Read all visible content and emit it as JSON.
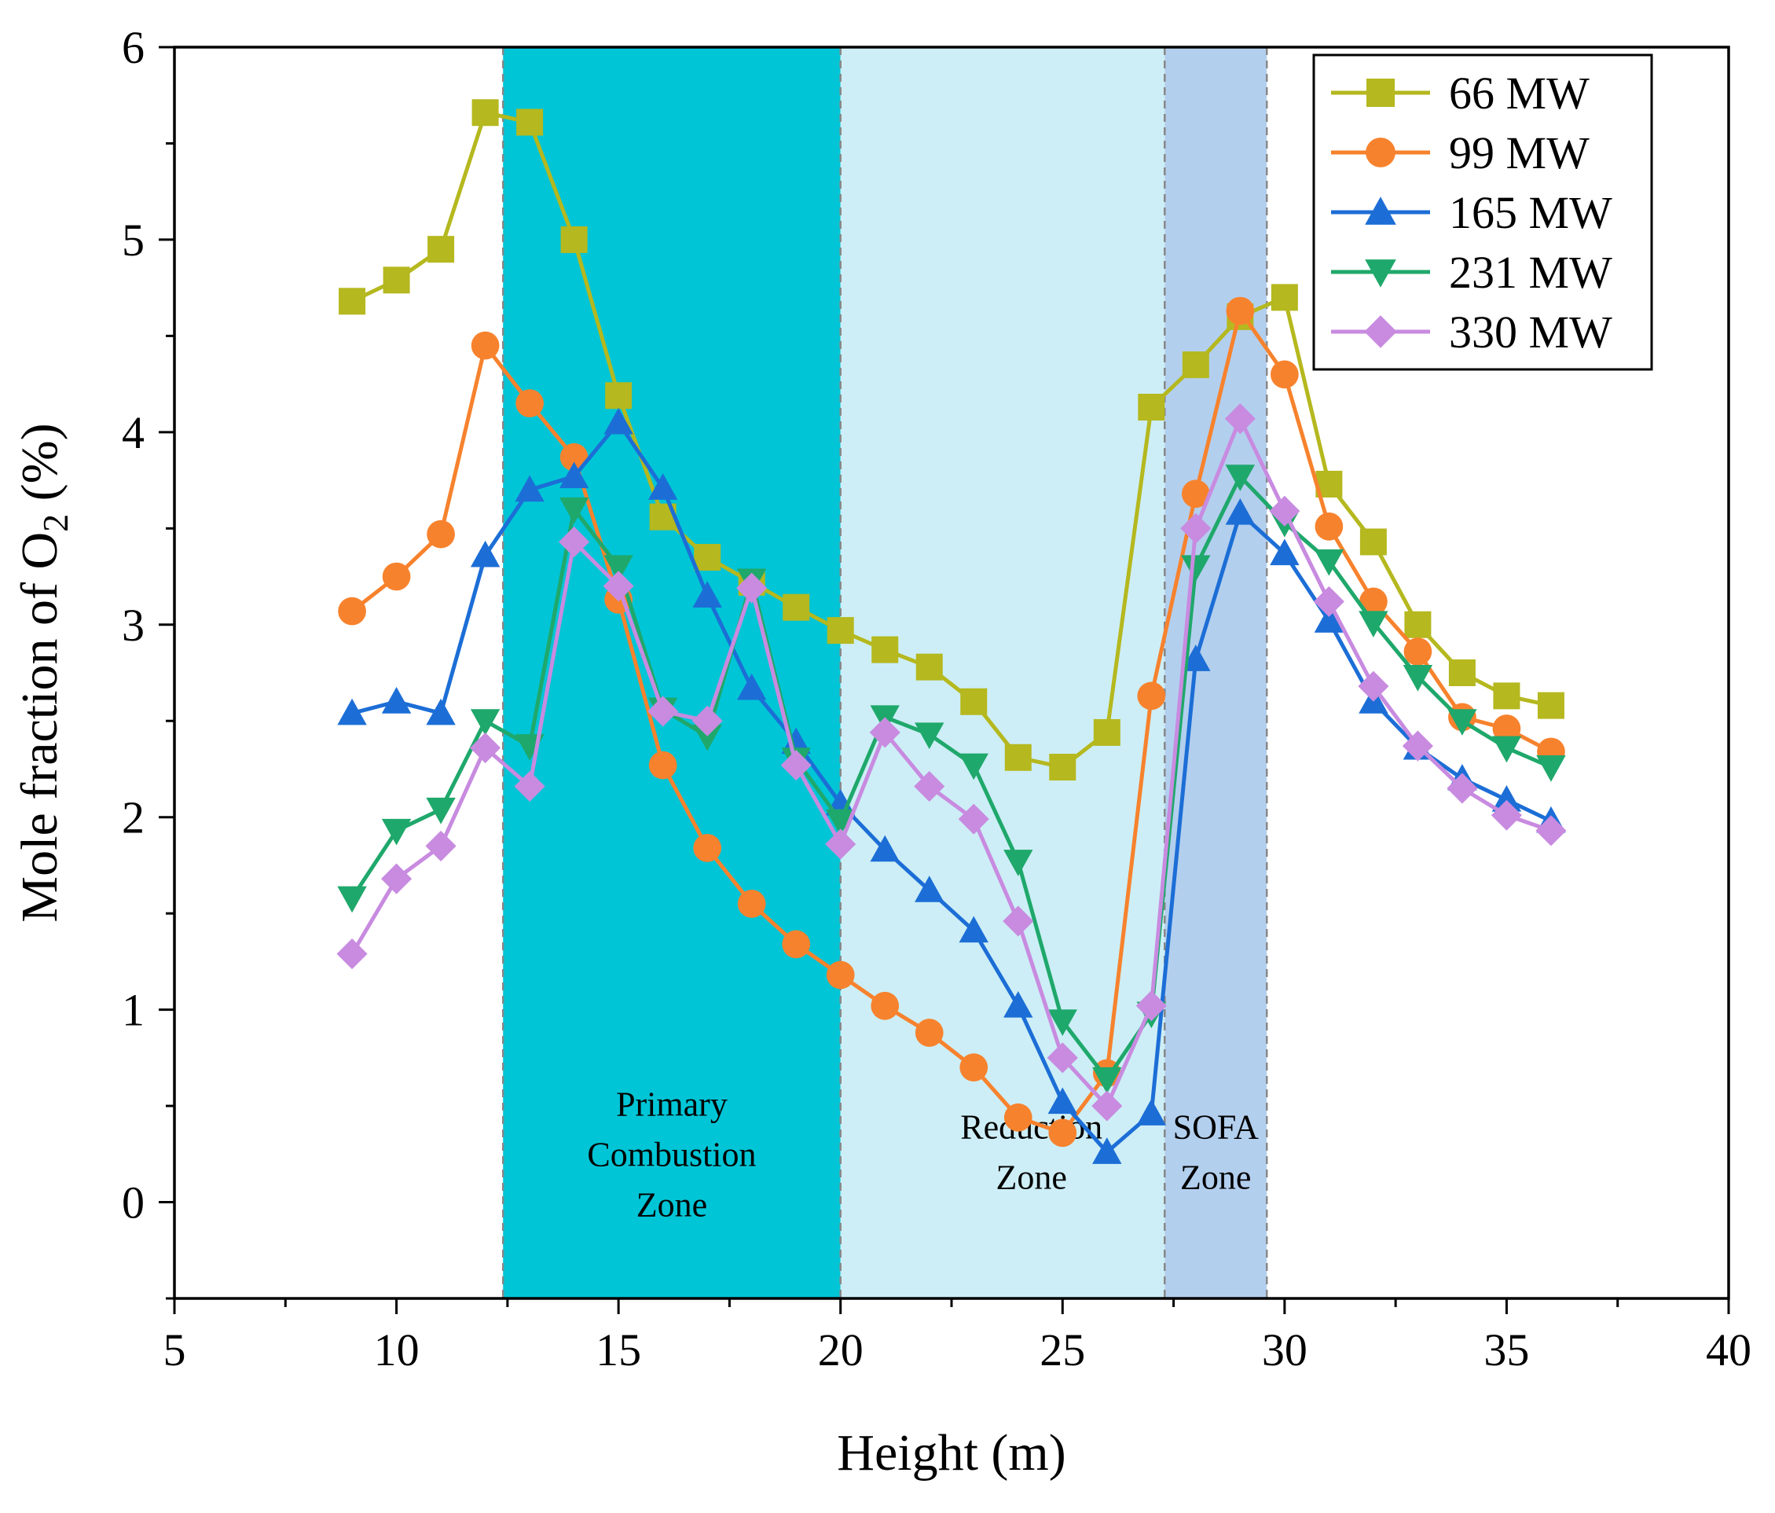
{
  "chart_data": {
    "type": "line",
    "title": "",
    "xlabel": "Height (m)",
    "ylabel": "Mole fraction of O2 (%)",
    "ylabel_parts": {
      "before": "Mole fraction of O",
      "sub": "2",
      "after": " (%)"
    },
    "xlim": [
      5,
      40
    ],
    "ylim": [
      -0.5,
      6
    ],
    "x_ticks": [
      5,
      10,
      15,
      20,
      25,
      30,
      35,
      40
    ],
    "x_tick_labels": [
      "5",
      "10",
      "15",
      "20",
      "25",
      "30",
      "35",
      "40"
    ],
    "y_ticks": [
      0,
      1,
      2,
      3,
      4,
      5,
      6
    ],
    "y_tick_labels": [
      "0",
      "1",
      "2",
      "3",
      "4",
      "5",
      "6"
    ],
    "grid": false,
    "legend_position": "top-right",
    "zones": [
      {
        "name": "Primary Combustion Zone",
        "x_start": 12.4,
        "x_end": 20.0,
        "color": "#00C5D6",
        "label_lines": [
          "Primary",
          "Combustion",
          "Zone"
        ],
        "label_x": 16.2,
        "label_y": 0.45
      },
      {
        "name": "Reduction Zone",
        "x_start": 20.0,
        "x_end": 27.3,
        "color": "#CDEEF6",
        "label_lines": [
          "Reduction",
          "Zone"
        ],
        "label_x": 24.3,
        "label_y": 0.33
      },
      {
        "name": "SOFA Zone",
        "x_start": 27.3,
        "x_end": 29.6,
        "color": "#B3CFEE",
        "label_lines": [
          "SOFA",
          "Zone"
        ],
        "label_x": 28.45,
        "label_y": 0.33
      }
    ],
    "x": [
      9,
      10,
      11,
      12,
      13,
      14,
      15,
      16,
      17,
      18,
      19,
      20,
      21,
      22,
      23,
      24,
      25,
      26,
      27,
      28,
      29,
      30,
      31,
      32,
      33,
      34,
      35,
      36
    ],
    "series": [
      {
        "name": "66 MW",
        "color": "#B5B81E",
        "marker": "square",
        "values": [
          4.68,
          4.79,
          4.95,
          5.66,
          5.61,
          5.0,
          4.19,
          3.56,
          3.35,
          3.22,
          3.09,
          2.97,
          2.87,
          2.78,
          2.6,
          2.31,
          2.26,
          2.44,
          4.13,
          4.35,
          4.6,
          4.7,
          3.73,
          3.43,
          3.0,
          2.75,
          2.63,
          2.58
        ]
      },
      {
        "name": "99 MW",
        "color": "#F7822D",
        "marker": "circle",
        "values": [
          3.07,
          3.25,
          3.47,
          4.45,
          4.15,
          3.87,
          3.13,
          2.27,
          1.84,
          1.55,
          1.34,
          1.18,
          1.02,
          0.88,
          0.7,
          0.44,
          0.36,
          0.67,
          2.63,
          3.68,
          4.63,
          4.3,
          3.51,
          3.12,
          2.86,
          2.52,
          2.46,
          2.34
        ]
      },
      {
        "name": "165 MW",
        "color": "#1C6ED6",
        "marker": "triangle-up",
        "values": [
          2.54,
          2.6,
          2.54,
          3.36,
          3.7,
          3.77,
          4.05,
          3.71,
          3.15,
          2.67,
          2.39,
          2.07,
          1.83,
          1.62,
          1.41,
          1.02,
          0.52,
          0.26,
          0.46,
          2.82,
          3.58,
          3.37,
          3.02,
          2.6,
          2.36,
          2.2,
          2.09,
          1.98
        ]
      },
      {
        "name": "231 MW",
        "color": "#1FA86B",
        "marker": "triangle-down",
        "values": [
          1.58,
          1.93,
          2.04,
          2.5,
          2.37,
          3.6,
          3.3,
          2.56,
          2.42,
          3.23,
          2.3,
          1.98,
          2.52,
          2.43,
          2.27,
          1.77,
          0.94,
          0.64,
          0.98,
          3.3,
          3.77,
          3.53,
          3.33,
          3.01,
          2.73,
          2.5,
          2.36,
          2.26
        ]
      },
      {
        "name": "330 MW",
        "color": "#C88BE0",
        "marker": "diamond",
        "values": [
          1.29,
          1.68,
          1.85,
          2.36,
          2.16,
          3.43,
          3.2,
          2.55,
          2.5,
          3.19,
          2.27,
          1.86,
          2.44,
          2.16,
          1.99,
          1.46,
          0.75,
          0.5,
          1.02,
          3.5,
          4.07,
          3.59,
          3.12,
          2.68,
          2.37,
          2.15,
          2.01,
          1.93
        ]
      }
    ]
  }
}
